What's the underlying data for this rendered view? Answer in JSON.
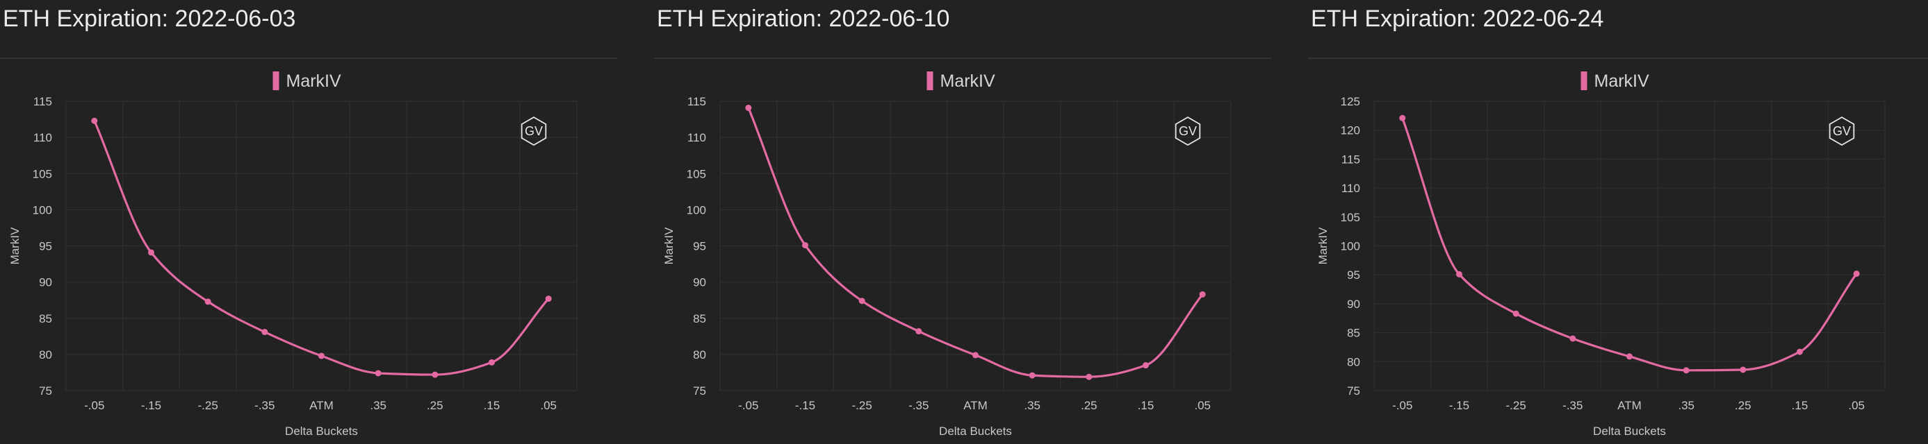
{
  "colors": {
    "background": "#222222",
    "series": "#e36aa3",
    "grid": "#2e2e2e",
    "text": "#c8c8c8"
  },
  "logo": {
    "text": "GV",
    "icon": "hexagon-logo-icon"
  },
  "chart_data": [
    {
      "type": "line",
      "title": "ETH Expiration: 2022-06-03",
      "xlabel": "Delta Buckets",
      "ylabel": "MarkIV",
      "categories": [
        "-.05",
        "-.15",
        "-.25",
        "-.35",
        "ATM",
        ".35",
        ".25",
        ".15",
        ".05"
      ],
      "series": [
        {
          "name": "MarkIV",
          "values": [
            112.3,
            94.1,
            87.3,
            83.1,
            79.8,
            77.4,
            77.2,
            78.9,
            87.7
          ]
        }
      ],
      "ylim": [
        75,
        115
      ],
      "yticks": [
        75,
        80,
        85,
        90,
        95,
        100,
        105,
        110,
        115
      ],
      "grid": true,
      "legend": "top-center"
    },
    {
      "type": "line",
      "title": "ETH Expiration: 2022-06-10",
      "xlabel": "Delta Buckets",
      "ylabel": "MarkIV",
      "categories": [
        "-.05",
        "-.15",
        "-.25",
        "-.35",
        "ATM",
        ".35",
        ".25",
        ".15",
        ".05"
      ],
      "series": [
        {
          "name": "MarkIV",
          "values": [
            114.1,
            95.1,
            87.4,
            83.2,
            79.9,
            77.1,
            76.9,
            78.5,
            88.3
          ]
        }
      ],
      "ylim": [
        75,
        115
      ],
      "yticks": [
        75,
        80,
        85,
        90,
        95,
        100,
        105,
        110,
        115
      ],
      "grid": true,
      "legend": "top-center"
    },
    {
      "type": "line",
      "title": "ETH Expiration: 2022-06-24",
      "xlabel": "Delta Buckets",
      "ylabel": "MarkIV",
      "categories": [
        "-.05",
        "-.15",
        "-.25",
        "-.35",
        "ATM",
        ".35",
        ".25",
        ".15",
        ".05"
      ],
      "series": [
        {
          "name": "MarkIV",
          "values": [
            122.1,
            95.1,
            88.3,
            84.0,
            80.9,
            78.5,
            78.6,
            81.7,
            95.2
          ]
        }
      ],
      "ylim": [
        75,
        125
      ],
      "yticks": [
        75,
        80,
        85,
        90,
        95,
        100,
        105,
        110,
        115,
        120,
        125
      ],
      "grid": true,
      "legend": "top-center"
    }
  ]
}
